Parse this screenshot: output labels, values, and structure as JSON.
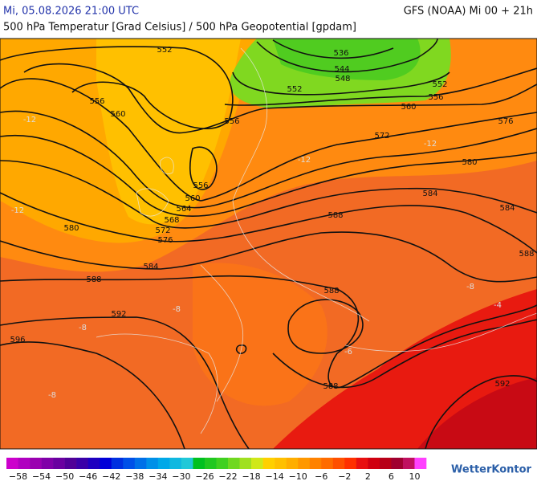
{
  "header": {
    "datetime": "Mi, 05.08.2026 21:00 UTC",
    "model": "GFS (NOAA) Mi 00 + 21h",
    "subtitle": "500 hPa Temperatur [Grad Celsius] / 500 hPa Geopotential [gpdam]"
  },
  "map": {
    "contour_labels": [
      "552",
      "536",
      "544",
      "548",
      "552",
      "552",
      "556",
      "556",
      "560",
      "556",
      "560",
      "576",
      "572",
      "580",
      "556",
      "560",
      "564",
      "568",
      "572",
      "576",
      "580",
      "584",
      "584",
      "588",
      "584",
      "588",
      "588",
      "588",
      "592",
      "596",
      "588",
      "592"
    ],
    "temperature_labels": [
      "-12",
      "-12",
      "-12",
      "-12",
      "-8",
      "-8",
      "-8",
      "-4",
      "-6",
      "-8"
    ]
  },
  "legend": {
    "labels": [
      "−58",
      "−54",
      "−50",
      "−46",
      "−42",
      "−38",
      "−34",
      "−30",
      "−26",
      "−22",
      "−18",
      "−14",
      "−10",
      "−6",
      "−2",
      "2",
      "6",
      "10"
    ],
    "colors": [
      "#cc00cc",
      "#b000c0",
      "#9a00b0",
      "#8000a8",
      "#6a00a0",
      "#500098",
      "#3a00a8",
      "#1e00c0",
      "#0000d8",
      "#0030e0",
      "#0050e8",
      "#0070e8",
      "#0090e8",
      "#00a8e8",
      "#10b8e0",
      "#20c8d8",
      "#00c020",
      "#20c820",
      "#40d020",
      "#70d820",
      "#a0e020",
      "#d0e818",
      "#ffd000",
      "#ffc000",
      "#ffae00",
      "#ff9800",
      "#ff8200",
      "#ff6c00",
      "#ff5000",
      "#ff3000",
      "#e81010",
      "#d00010",
      "#b80018",
      "#a00030",
      "#c01060",
      "#ff40ff"
    ]
  },
  "logo": "WetterKontor"
}
